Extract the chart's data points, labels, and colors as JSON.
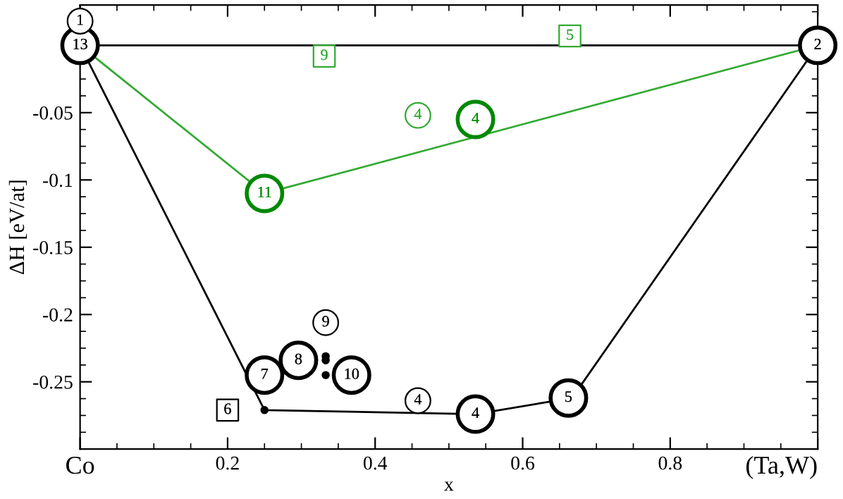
{
  "chart_data": {
    "type": "line",
    "xlabel": "x",
    "ylabel": "ΔH [eV/at]",
    "xlim": [
      0,
      1
    ],
    "ylim": [
      -0.3,
      0.03
    ],
    "xticks": [
      {
        "value": 0,
        "label": "Co"
      },
      0.2,
      0.4,
      0.6,
      0.8,
      {
        "value": 1,
        "label": "(Ta,W)"
      }
    ],
    "yticks": [
      -0.25,
      -0.2,
      -0.15,
      -0.1,
      -0.05
    ],
    "grid": false,
    "legend": false,
    "ref_lines": [
      {
        "axis": "y",
        "value": 0,
        "color": "#000000"
      }
    ],
    "series": [
      {
        "color": "#000000",
        "x": [
          0,
          0.25,
          0.536,
          0.667,
          1
        ],
        "values": [
          0,
          -0.271,
          -0.274,
          -0.262,
          0
        ]
      },
      {
        "color": "#33aa33",
        "x": [
          0,
          0.25,
          1
        ],
        "values": [
          0,
          -0.11,
          0
        ]
      },
      {
        "type": "scatter",
        "color": "#000000",
        "marker": "circle",
        "x": [
          0.25,
          0.333,
          0.333,
          0.333
        ],
        "values": [
          -0.271,
          -0.231,
          -0.234,
          -0.245
        ]
      },
      {
        "type": "bubble",
        "color": "#000000",
        "marker": "circle",
        "x": [
          0,
          1,
          0.536,
          0.662,
          0.25,
          0.296,
          0.368
        ],
        "values": [
          0,
          0,
          -0.274,
          -0.262,
          -0.245,
          -0.234,
          -0.245
        ],
        "sizes": [
          1,
          1,
          1,
          1,
          1,
          1,
          1
        ]
      },
      {
        "type": "bubble",
        "color": "#000000",
        "marker": "circle",
        "x": [
          0,
          0.333,
          0.458
        ],
        "values": [
          0.018,
          -0.206,
          -0.264
        ],
        "sizes": [
          0.5,
          0.5,
          0.5
        ]
      },
      {
        "type": "scatter",
        "color": "#000000",
        "marker": "square",
        "x": [
          0.2
        ],
        "values": [
          -0.271
        ]
      },
      {
        "type": "bubble",
        "color": "#008800",
        "marker": "circle",
        "x": [
          0.25,
          0.536
        ],
        "values": [
          -0.11,
          -0.055
        ],
        "sizes": [
          1,
          1
        ]
      },
      {
        "type": "bubble",
        "color": "#33aa33",
        "marker": "circle",
        "x": [
          0.458
        ],
        "values": [
          -0.052
        ],
        "sizes": [
          0.5
        ]
      },
      {
        "type": "scatter",
        "color": "#33aa33",
        "marker": "square",
        "x": [
          0.331,
          0.664
        ],
        "values": [
          -0.008,
          0.007
        ]
      }
    ],
    "annotations": [
      {
        "text": "13",
        "x": 0,
        "y": 0
      },
      {
        "text": "2",
        "x": 1,
        "y": 0
      },
      {
        "text": "4",
        "x": 0.536,
        "y": -0.274
      },
      {
        "text": "5",
        "x": 0.662,
        "y": -0.262
      },
      {
        "text": "7",
        "x": 0.25,
        "y": -0.245
      },
      {
        "text": "8",
        "x": 0.296,
        "y": -0.234
      },
      {
        "text": "10",
        "x": 0.368,
        "y": -0.245
      },
      {
        "text": "1",
        "x": 0,
        "y": 0.018
      },
      {
        "text": "9",
        "x": 0.333,
        "y": -0.206
      },
      {
        "text": "4",
        "x": 0.458,
        "y": -0.264
      },
      {
        "text": "6",
        "x": 0.2,
        "y": -0.271
      },
      {
        "text": "11",
        "x": 0.25,
        "y": -0.11
      },
      {
        "text": "4",
        "x": 0.536,
        "y": -0.055
      },
      {
        "text": "4",
        "x": 0.458,
        "y": -0.052
      },
      {
        "text": "9",
        "x": 0.331,
        "y": -0.008
      },
      {
        "text": "5",
        "x": 0.664,
        "y": 0.007
      }
    ]
  }
}
